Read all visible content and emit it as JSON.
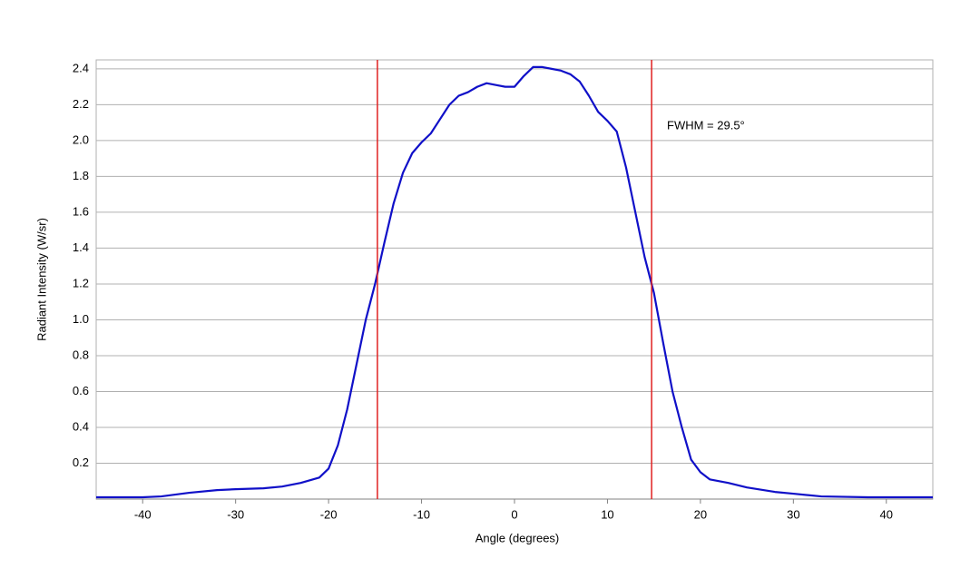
{
  "chart_data": {
    "type": "line",
    "x_label": "Angle (degrees)",
    "y_label": "Radiant Intensity (W/sr)",
    "annotation": "FWHM = 29.5°",
    "xlim": [
      -45,
      45
    ],
    "ylim": [
      0,
      2.45
    ],
    "xticks": [
      -40,
      -30,
      -20,
      -10,
      0,
      10,
      20,
      30,
      40
    ],
    "yticks": [
      0.2,
      0.4,
      0.6,
      0.8,
      {
        "value": 1,
        "label": "1.0"
      },
      1.2,
      1.4,
      1.6,
      1.8,
      {
        "value": 2,
        "label": "2.0"
      },
      2.2,
      2.4
    ],
    "grid": true,
    "vlines": [
      -14.75,
      14.75
    ],
    "vline_color": "#e02020",
    "series": [
      {
        "color": "#1010c8",
        "x": [
          -45,
          -40,
          -38,
          -35,
          -32,
          -30,
          -27,
          -25,
          -23,
          -21,
          -20,
          -19,
          -18,
          -17,
          -16,
          -15,
          -14,
          -13,
          -12,
          -11,
          -10,
          -9,
          -8,
          -7,
          -6,
          -5,
          -4,
          -3,
          -2,
          -1,
          0,
          1,
          2,
          3,
          4,
          5,
          6,
          7,
          8,
          9,
          10,
          11,
          12,
          13,
          14,
          15,
          16,
          17,
          18,
          19,
          20,
          21,
          23,
          25,
          28,
          30,
          33,
          38,
          45
        ],
        "values": [
          0.01,
          0.01,
          0.015,
          0.035,
          0.05,
          0.055,
          0.06,
          0.07,
          0.09,
          0.12,
          0.17,
          0.3,
          0.5,
          0.75,
          1.0,
          1.2,
          1.43,
          1.65,
          1.82,
          1.93,
          1.99,
          2.04,
          2.12,
          2.2,
          2.25,
          2.27,
          2.3,
          2.32,
          2.31,
          2.3,
          2.3,
          2.36,
          2.41,
          2.41,
          2.4,
          2.39,
          2.37,
          2.33,
          2.25,
          2.16,
          2.11,
          2.05,
          1.85,
          1.6,
          1.35,
          1.15,
          0.87,
          0.6,
          0.4,
          0.22,
          0.15,
          0.11,
          0.09,
          0.065,
          0.04,
          0.03,
          0.015,
          0.01,
          0.01
        ]
      }
    ]
  }
}
